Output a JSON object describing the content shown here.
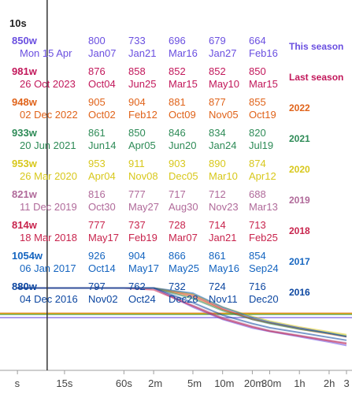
{
  "header": {
    "duration": "10s"
  },
  "colors": {
    "This season": "#6a4fe0",
    "Last season": "#c2185b",
    "2022": "#e0631a",
    "2021": "#2e8b57",
    "2020": "#d8c81c",
    "2019": "#b06a9a",
    "2018": "#c8244d",
    "2017": "#1565c0",
    "2016": "#0d47a1"
  },
  "seasons": [
    {
      "name": "This season",
      "color": "#6a4fe0",
      "best": {
        "watts": "850w",
        "date": "Mon 15 Apr"
      },
      "peaks": [
        {
          "watts": "800",
          "date": "Jan07"
        },
        {
          "watts": "733",
          "date": "Jan21"
        },
        {
          "watts": "696",
          "date": "Mar16"
        },
        {
          "watts": "679",
          "date": "Jan27"
        },
        {
          "watts": "664",
          "date": "Feb16"
        }
      ]
    },
    {
      "name": "Last season",
      "color": "#c2185b",
      "best": {
        "watts": "981w",
        "date": "26 Oct 2023"
      },
      "peaks": [
        {
          "watts": "876",
          "date": "Oct04"
        },
        {
          "watts": "858",
          "date": "Jun25"
        },
        {
          "watts": "852",
          "date": "Mar15"
        },
        {
          "watts": "852",
          "date": "May10"
        },
        {
          "watts": "850",
          "date": "Mar15"
        }
      ]
    },
    {
      "name": "2022",
      "color": "#e0631a",
      "best": {
        "watts": "948w",
        "date": "02 Dec 2022"
      },
      "peaks": [
        {
          "watts": "905",
          "date": "Oct02"
        },
        {
          "watts": "904",
          "date": "Feb12"
        },
        {
          "watts": "881",
          "date": "Oct09"
        },
        {
          "watts": "877",
          "date": "Nov05"
        },
        {
          "watts": "855",
          "date": "Oct19"
        }
      ]
    },
    {
      "name": "2021",
      "color": "#2e8b57",
      "best": {
        "watts": "933w",
        "date": "20 Jun 2021"
      },
      "peaks": [
        {
          "watts": "861",
          "date": "Jun14"
        },
        {
          "watts": "850",
          "date": "Apr05"
        },
        {
          "watts": "846",
          "date": "Jun20"
        },
        {
          "watts": "834",
          "date": "Jan24"
        },
        {
          "watts": "820",
          "date": "Jul19"
        }
      ]
    },
    {
      "name": "2020",
      "color": "#d8c81c",
      "best": {
        "watts": "953w",
        "date": "26 Mar 2020"
      },
      "peaks": [
        {
          "watts": "953",
          "date": "Apr04"
        },
        {
          "watts": "911",
          "date": "Nov08"
        },
        {
          "watts": "903",
          "date": "Dec05"
        },
        {
          "watts": "890",
          "date": "Mar10"
        },
        {
          "watts": "874",
          "date": "Apr12"
        }
      ]
    },
    {
      "name": "2019",
      "color": "#b06a9a",
      "best": {
        "watts": "821w",
        "date": "11 Dec 2019"
      },
      "peaks": [
        {
          "watts": "816",
          "date": "Oct30"
        },
        {
          "watts": "777",
          "date": "May27"
        },
        {
          "watts": "717",
          "date": "Aug30"
        },
        {
          "watts": "712",
          "date": "Nov23"
        },
        {
          "watts": "688",
          "date": "Mar13"
        }
      ]
    },
    {
      "name": "2018",
      "color": "#c8244d",
      "best": {
        "watts": "814w",
        "date": "18 Mar 2018"
      },
      "peaks": [
        {
          "watts": "777",
          "date": "May17"
        },
        {
          "watts": "737",
          "date": "Feb19"
        },
        {
          "watts": "728",
          "date": "Mar07"
        },
        {
          "watts": "714",
          "date": "Jan21"
        },
        {
          "watts": "713",
          "date": "Feb25"
        }
      ]
    },
    {
      "name": "2017",
      "color": "#1565c0",
      "best": {
        "watts": "1054w",
        "date": "06 Jan 2017"
      },
      "peaks": [
        {
          "watts": "926",
          "date": "Oct14"
        },
        {
          "watts": "904",
          "date": "May17"
        },
        {
          "watts": "866",
          "date": "May25"
        },
        {
          "watts": "861",
          "date": "May16"
        },
        {
          "watts": "854",
          "date": "Sep24"
        }
      ]
    },
    {
      "name": "2016",
      "color": "#0d47a1",
      "best": {
        "watts": "880w",
        "date": "04 Dec 2016"
      },
      "peaks": [
        {
          "watts": "797",
          "date": "Nov02"
        },
        {
          "watts": "762",
          "date": "Oct24"
        },
        {
          "watts": "732",
          "date": "Dec28"
        },
        {
          "watts": "724",
          "date": "Nov11"
        },
        {
          "watts": "716",
          "date": "Dec20"
        }
      ]
    }
  ],
  "chart_data": {
    "type": "line",
    "xscale": "log",
    "xlabel": "",
    "ylabel": "",
    "title": "",
    "x_ticks": [
      "s",
      "15s",
      "60s",
      "2m",
      "5m",
      "10m",
      "20m",
      "30m",
      "1h",
      "2h",
      "3"
    ],
    "x_tick_seconds": [
      5,
      15,
      60,
      120,
      300,
      600,
      1200,
      1800,
      3600,
      7200,
      10800
    ],
    "cursor_x_seconds": 10,
    "x_range_seconds": [
      4,
      10800
    ],
    "y_range_watts": [
      0,
      1100
    ],
    "series": [
      {
        "name": "This season",
        "color": "#6a4fe0",
        "x": [
          5,
          10,
          30,
          60,
          120,
          300,
          600,
          1200,
          1800,
          3600,
          7200,
          10800
        ],
        "y": [
          1000,
          850,
          620,
          470,
          380,
          325,
          290,
          265,
          255,
          240,
          225,
          215
        ]
      },
      {
        "name": "Last season",
        "color": "#c2185b",
        "x": [
          5,
          10,
          30,
          60,
          120,
          300,
          600,
          1200,
          1800,
          3600,
          7200,
          10800
        ],
        "y": [
          1060,
          981,
          700,
          520,
          420,
          360,
          320,
          290,
          280,
          265,
          250,
          240
        ]
      },
      {
        "name": "2022",
        "color": "#e0631a",
        "x": [
          5,
          10,
          30,
          60,
          120,
          300,
          600,
          1200,
          1800,
          3600,
          7200,
          10800
        ],
        "y": [
          1020,
          948,
          690,
          510,
          410,
          355,
          318,
          292,
          280,
          262,
          248,
          240
        ]
      },
      {
        "name": "2021",
        "color": "#2e8b57",
        "x": [
          5,
          10,
          30,
          60,
          120,
          300,
          600,
          1200,
          1800,
          3600,
          7200,
          10800
        ],
        "y": [
          1000,
          933,
          680,
          505,
          405,
          350,
          315,
          290,
          278,
          262,
          250,
          242
        ]
      },
      {
        "name": "2020",
        "color": "#d8c81c",
        "x": [
          5,
          10,
          30,
          60,
          120,
          300,
          600,
          1200,
          1800,
          3600,
          7200,
          10800
        ],
        "y": [
          1020,
          953,
          700,
          520,
          420,
          362,
          325,
          298,
          285,
          268,
          254,
          246
        ]
      },
      {
        "name": "2019",
        "color": "#b06a9a",
        "x": [
          5,
          10,
          30,
          60,
          120,
          300,
          600,
          1200,
          1800,
          3600,
          7200,
          10800
        ],
        "y": [
          900,
          821,
          610,
          460,
          380,
          330,
          295,
          270,
          258,
          244,
          230,
          222
        ]
      },
      {
        "name": "2018",
        "color": "#c8244d",
        "x": [
          5,
          10,
          30,
          60,
          120,
          300,
          600,
          1200,
          1800,
          3600,
          7200,
          10800
        ],
        "y": [
          880,
          814,
          600,
          455,
          375,
          328,
          292,
          268,
          256,
          242,
          228,
          220
        ]
      },
      {
        "name": "2017",
        "color": "#1565c0",
        "x": [
          5,
          10,
          30,
          60,
          120,
          300,
          600,
          1200,
          1800,
          3600,
          7200,
          10800
        ],
        "y": [
          1100,
          1054,
          740,
          540,
          430,
          365,
          325,
          295,
          282,
          265,
          250,
          240
        ]
      },
      {
        "name": "2016",
        "color": "#0d47a1",
        "x": [
          5,
          10,
          30,
          60,
          120,
          300,
          600,
          1200,
          1800,
          3600,
          7200,
          10800
        ],
        "y": [
          960,
          880,
          640,
          480,
          390,
          338,
          302,
          278,
          266,
          252,
          238,
          230
        ]
      }
    ],
    "reference_lines": [
      {
        "season": "Last season",
        "watts": 305,
        "color": "#c2185b"
      },
      {
        "season": "2022",
        "watts": 308,
        "color": "#e0631a"
      },
      {
        "season": "2021",
        "watts": 304,
        "color": "#2e8b57"
      },
      {
        "season": "2020",
        "watts": 306,
        "color": "#d8c81c"
      },
      {
        "season": "This season",
        "watts": 295,
        "color": "#6a4fe0"
      }
    ]
  }
}
